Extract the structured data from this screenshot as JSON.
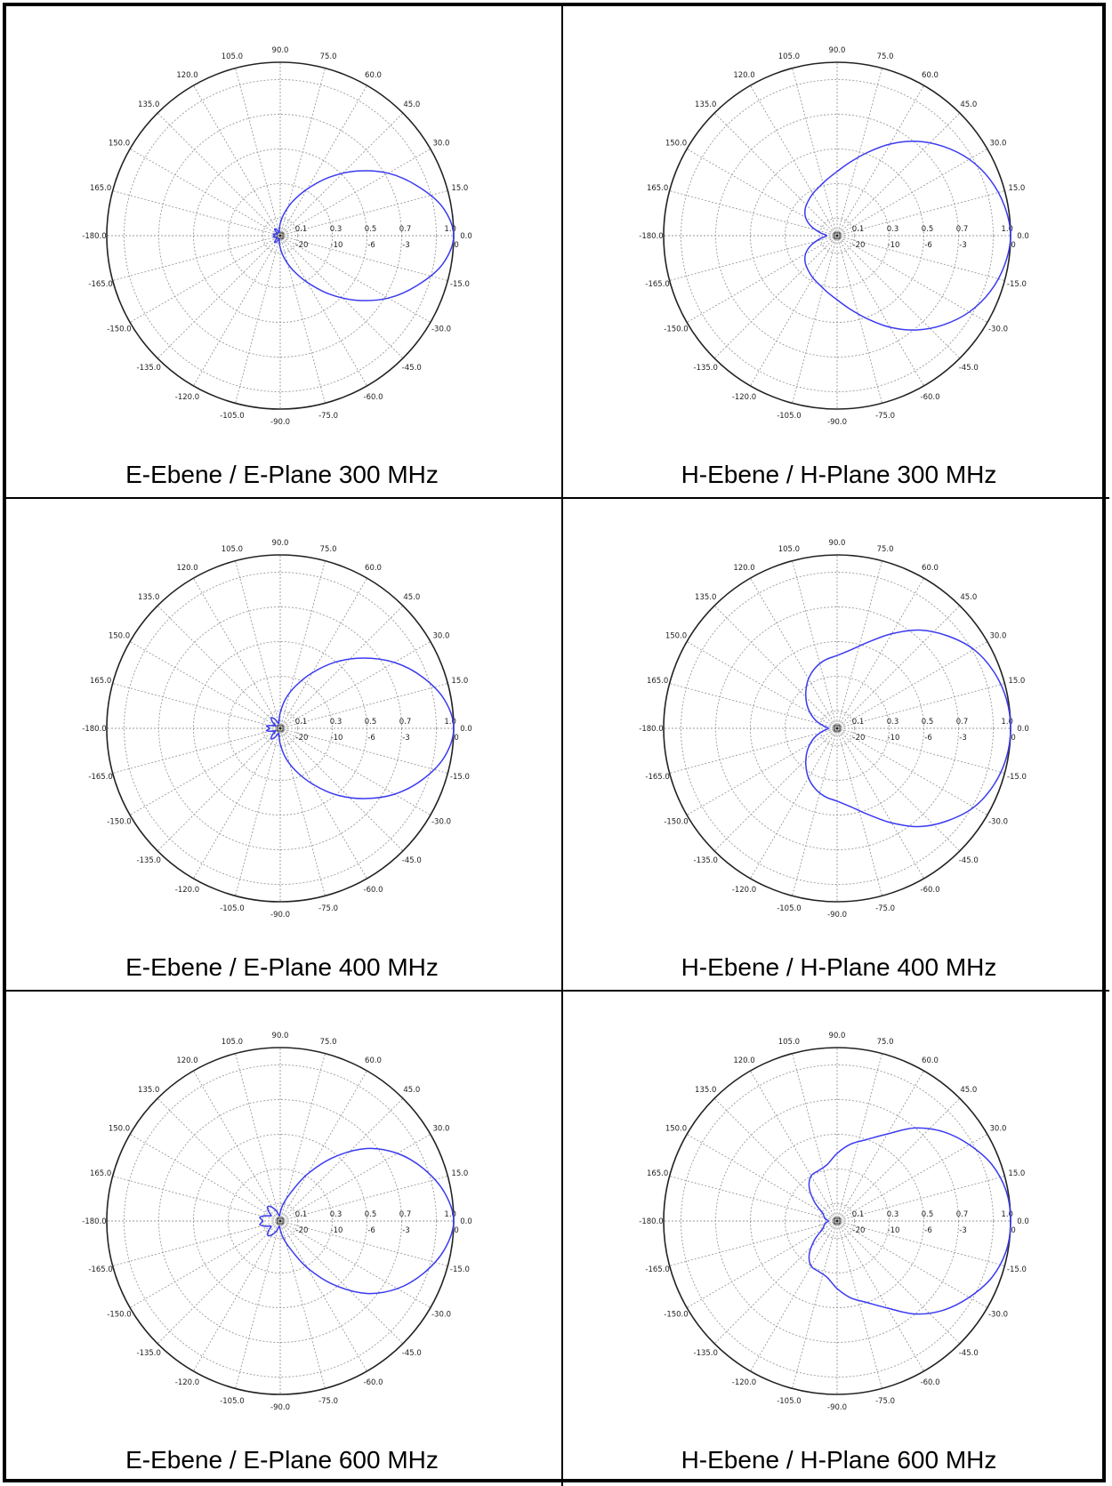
{
  "chart_data": [
    {
      "type": "polar-line",
      "caption": "E-Ebene / E-Plane 300 MHz",
      "angle_ticks": [
        "90.0",
        "75.0",
        "60.0",
        "45.0",
        "30.0",
        "15.0",
        "0.0",
        "-15.0",
        "-30.0",
        "-45.0",
        "-60.0",
        "-75.0",
        "-90.0",
        "-105.0",
        "-120.0",
        "-135.0",
        "-150.0",
        "-165.0",
        "-180.0",
        "165.0",
        "150.0",
        "135.0",
        "120.0",
        "105.0"
      ],
      "radial_ticks_linear": [
        "0.1",
        "0.3",
        "0.5",
        "0.7",
        "1.0"
      ],
      "radial_ticks_db": [
        "-20",
        "-10",
        "-6",
        "-3",
        "0"
      ],
      "series_color": "#3a3af0",
      "pattern": {
        "angles": [
          0,
          10,
          20,
          30,
          40,
          50,
          60,
          70,
          80,
          90,
          100,
          110,
          120,
          130,
          140,
          150,
          160,
          170,
          180,
          190,
          200,
          210,
          220,
          230,
          240,
          250,
          260,
          270,
          280,
          290,
          300,
          310,
          320,
          330,
          340,
          350,
          360
        ],
        "values": [
          1.0,
          0.95,
          0.84,
          0.72,
          0.58,
          0.44,
          0.31,
          0.21,
          0.13,
          0.07,
          0.03,
          0.02,
          0.04,
          0.05,
          0.03,
          0.02,
          0.03,
          0.04,
          0.03,
          0.04,
          0.03,
          0.02,
          0.03,
          0.05,
          0.04,
          0.02,
          0.03,
          0.07,
          0.13,
          0.21,
          0.31,
          0.44,
          0.58,
          0.72,
          0.84,
          0.95,
          1.0
        ]
      }
    },
    {
      "type": "polar-line",
      "caption": "H-Ebene / H-Plane 300 MHz",
      "angle_ticks": [
        "90.0",
        "75.0",
        "60.0",
        "45.0",
        "30.0",
        "15.0",
        "0.0",
        "-15.0",
        "-30.0",
        "-45.0",
        "-60.0",
        "-75.0",
        "-90.0",
        "-105.0",
        "-120.0",
        "-135.0",
        "-150.0",
        "-165.0",
        "-180.0",
        "165.0",
        "150.0",
        "135.0",
        "120.0",
        "105.0"
      ],
      "radial_ticks_linear": [
        "0.1",
        "0.3",
        "0.5",
        "0.7",
        "1.0"
      ],
      "radial_ticks_db": [
        "-20",
        "-10",
        "-6",
        "-3",
        "0"
      ],
      "series_color": "#3a3af0",
      "pattern": {
        "angles": [
          0,
          10,
          20,
          30,
          40,
          50,
          60,
          70,
          80,
          90,
          100,
          110,
          120,
          130,
          140,
          150,
          160,
          170,
          180,
          190,
          200,
          210,
          220,
          230,
          240,
          250,
          260,
          270,
          280,
          290,
          300,
          310,
          320,
          330,
          340,
          350,
          360
        ],
        "values": [
          1.0,
          0.98,
          0.94,
          0.88,
          0.8,
          0.71,
          0.61,
          0.51,
          0.43,
          0.37,
          0.33,
          0.3,
          0.28,
          0.26,
          0.24,
          0.21,
          0.16,
          0.1,
          0.06,
          0.1,
          0.16,
          0.21,
          0.24,
          0.26,
          0.28,
          0.3,
          0.33,
          0.37,
          0.43,
          0.51,
          0.61,
          0.71,
          0.8,
          0.88,
          0.94,
          0.98,
          1.0
        ]
      }
    },
    {
      "type": "polar-line",
      "caption": "E-Ebene / E-Plane 400 MHz",
      "angle_ticks": [
        "90.0",
        "75.0",
        "60.0",
        "45.0",
        "30.0",
        "15.0",
        "0.0",
        "-15.0",
        "-30.0",
        "-45.0",
        "-60.0",
        "-75.0",
        "-90.0",
        "-105.0",
        "-120.0",
        "-135.0",
        "-150.0",
        "-165.0",
        "-180.0",
        "165.0",
        "150.0",
        "135.0",
        "120.0",
        "105.0"
      ],
      "radial_ticks_linear": [
        "0.1",
        "0.3",
        "0.5",
        "0.7",
        "1.0"
      ],
      "radial_ticks_db": [
        "-20",
        "-10",
        "-6",
        "-3",
        "0"
      ],
      "series_color": "#3a3af0",
      "pattern": {
        "angles": [
          0,
          10,
          20,
          30,
          40,
          50,
          60,
          70,
          80,
          90,
          100,
          110,
          120,
          130,
          140,
          150,
          160,
          170,
          180,
          190,
          200,
          210,
          220,
          230,
          240,
          250,
          260,
          270,
          280,
          290,
          300,
          310,
          320,
          330,
          340,
          350,
          360
        ],
        "values": [
          1.0,
          0.96,
          0.87,
          0.76,
          0.63,
          0.5,
          0.37,
          0.26,
          0.17,
          0.09,
          0.04,
          0.03,
          0.06,
          0.08,
          0.06,
          0.03,
          0.05,
          0.08,
          0.06,
          0.08,
          0.05,
          0.03,
          0.06,
          0.08,
          0.06,
          0.03,
          0.04,
          0.09,
          0.17,
          0.26,
          0.37,
          0.5,
          0.63,
          0.76,
          0.87,
          0.96,
          1.0
        ]
      }
    },
    {
      "type": "polar-line",
      "caption": "H-Ebene / H-Plane 400 MHz",
      "angle_ticks": [
        "90.0",
        "75.0",
        "60.0",
        "45.0",
        "30.0",
        "15.0",
        "0.0",
        "-15.0",
        "-30.0",
        "-45.0",
        "-60.0",
        "-75.0",
        "-90.0",
        "-105.0",
        "-120.0",
        "-135.0",
        "-150.0",
        "-165.0",
        "-180.0",
        "165.0",
        "150.0",
        "135.0",
        "120.0",
        "105.0"
      ],
      "radial_ticks_linear": [
        "0.1",
        "0.3",
        "0.5",
        "0.7",
        "1.0"
      ],
      "radial_ticks_db": [
        "-20",
        "-10",
        "-6",
        "-3",
        "0"
      ],
      "series_color": "#3a3af0",
      "pattern": {
        "angles": [
          0,
          10,
          20,
          30,
          40,
          50,
          60,
          70,
          80,
          90,
          100,
          110,
          120,
          130,
          140,
          150,
          160,
          170,
          180,
          190,
          200,
          210,
          220,
          230,
          240,
          250,
          260,
          270,
          280,
          290,
          300,
          310,
          320,
          330,
          340,
          350,
          360
        ],
        "values": [
          1.0,
          0.99,
          0.96,
          0.91,
          0.83,
          0.74,
          0.63,
          0.53,
          0.46,
          0.42,
          0.4,
          0.37,
          0.33,
          0.28,
          0.23,
          0.18,
          0.13,
          0.08,
          0.05,
          0.08,
          0.13,
          0.18,
          0.23,
          0.28,
          0.33,
          0.37,
          0.4,
          0.42,
          0.46,
          0.53,
          0.63,
          0.74,
          0.83,
          0.91,
          0.96,
          0.99,
          1.0
        ]
      }
    },
    {
      "type": "polar-line",
      "caption": "E-Ebene / E-Plane 600 MHz",
      "angle_ticks": [
        "90.0",
        "75.0",
        "60.0",
        "45.0",
        "30.0",
        "15.0",
        "0.0",
        "-15.0",
        "-30.0",
        "-45.0",
        "-60.0",
        "-75.0",
        "-90.0",
        "-105.0",
        "-120.0",
        "-135.0",
        "-150.0",
        "-165.0",
        "-180.0",
        "165.0",
        "150.0",
        "135.0",
        "120.0",
        "105.0"
      ],
      "radial_ticks_linear": [
        "0.1",
        "0.3",
        "0.5",
        "0.7",
        "1.0"
      ],
      "radial_ticks_db": [
        "-20",
        "-10",
        "-6",
        "-3",
        "0"
      ],
      "series_color": "#3a3af0",
      "pattern": {
        "angles": [
          0,
          10,
          20,
          30,
          40,
          50,
          60,
          70,
          80,
          90,
          100,
          110,
          120,
          130,
          140,
          150,
          160,
          170,
          180,
          190,
          200,
          210,
          220,
          230,
          240,
          250,
          260,
          270,
          280,
          290,
          300,
          310,
          320,
          330,
          340,
          350,
          360
        ],
        "values": [
          1.0,
          0.96,
          0.88,
          0.78,
          0.65,
          0.48,
          0.31,
          0.17,
          0.1,
          0.05,
          0.03,
          0.06,
          0.09,
          0.11,
          0.09,
          0.06,
          0.09,
          0.12,
          0.1,
          0.12,
          0.09,
          0.06,
          0.09,
          0.11,
          0.09,
          0.06,
          0.03,
          0.05,
          0.1,
          0.17,
          0.31,
          0.48,
          0.65,
          0.78,
          0.88,
          0.96,
          1.0
        ]
      }
    },
    {
      "type": "polar-line",
      "caption": "H-Ebene / H-Plane 600 MHz",
      "angle_ticks": [
        "90.0",
        "75.0",
        "60.0",
        "45.0",
        "30.0",
        "15.0",
        "0.0",
        "-15.0",
        "-30.0",
        "-45.0",
        "-60.0",
        "-75.0",
        "-90.0",
        "-105.0",
        "-120.0",
        "-135.0",
        "-150.0",
        "-165.0",
        "-180.0",
        "165.0",
        "150.0",
        "135.0",
        "120.0",
        "105.0"
      ],
      "radial_ticks_linear": [
        "0.1",
        "0.3",
        "0.5",
        "0.7",
        "1.0"
      ],
      "radial_ticks_db": [
        "-20",
        "-10",
        "-6",
        "-3",
        "0"
      ],
      "series_color": "#3a3af0",
      "pattern": {
        "angles": [
          0,
          10,
          20,
          30,
          40,
          50,
          60,
          70,
          80,
          90,
          100,
          110,
          120,
          130,
          140,
          150,
          160,
          170,
          180,
          190,
          200,
          210,
          220,
          230,
          240,
          250,
          260,
          270,
          280,
          290,
          300,
          310,
          320,
          330,
          340,
          350,
          360
        ],
        "values": [
          1.0,
          0.99,
          0.95,
          0.88,
          0.8,
          0.7,
          0.58,
          0.5,
          0.45,
          0.39,
          0.33,
          0.31,
          0.3,
          0.25,
          0.17,
          0.1,
          0.08,
          0.07,
          0.05,
          0.07,
          0.08,
          0.1,
          0.17,
          0.25,
          0.3,
          0.31,
          0.33,
          0.39,
          0.45,
          0.5,
          0.58,
          0.7,
          0.8,
          0.88,
          0.95,
          0.99,
          1.0
        ]
      }
    }
  ]
}
